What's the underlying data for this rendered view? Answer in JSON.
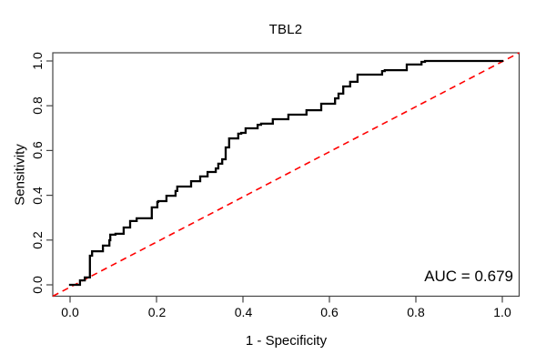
{
  "title": "TBL2",
  "axes": {
    "x": {
      "label": "1 - Specificity",
      "ticks": [
        "0.0",
        "0.2",
        "0.4",
        "0.6",
        "0.8",
        "1.0"
      ],
      "tick_values": [
        0,
        0.2,
        0.4,
        0.6,
        0.8,
        1.0
      ]
    },
    "y": {
      "label": "Sensitivity",
      "ticks": [
        "0.0",
        "0.2",
        "0.4",
        "0.6",
        "0.8",
        "1.0"
      ],
      "tick_values": [
        0,
        0.2,
        0.4,
        0.6,
        0.8,
        1.0
      ]
    }
  },
  "annotation": {
    "auc_label": "AUC = 0.679",
    "auc_value": 0.679
  },
  "colors": {
    "roc_curve": "#000000",
    "diagonal": "#ff0000",
    "box": "#444444",
    "text": "#000000",
    "background": "#ffffff"
  },
  "chart_data": {
    "type": "line",
    "title": "TBL2",
    "xlabel": "1 - Specificity",
    "ylabel": "Sensitivity",
    "xlim": [
      0,
      1
    ],
    "ylim": [
      0,
      1
    ],
    "grid": false,
    "legend": "none",
    "series": [
      {
        "name": "ROC step curve",
        "style": "solid-step",
        "color": "#000000",
        "points": [
          [
            0.0,
            0.0
          ],
          [
            0.023,
            0.0
          ],
          [
            0.023,
            0.02
          ],
          [
            0.034,
            0.02
          ],
          [
            0.034,
            0.033
          ],
          [
            0.046,
            0.033
          ],
          [
            0.051,
            0.13
          ],
          [
            0.065,
            0.15
          ],
          [
            0.076,
            0.15
          ],
          [
            0.078,
            0.175
          ],
          [
            0.091,
            0.175
          ],
          [
            0.093,
            0.199
          ],
          [
            0.105,
            0.224
          ],
          [
            0.124,
            0.228
          ],
          [
            0.139,
            0.256
          ],
          [
            0.154,
            0.285
          ],
          [
            0.175,
            0.297
          ],
          [
            0.189,
            0.297
          ],
          [
            0.189,
            0.346
          ],
          [
            0.202,
            0.346
          ],
          [
            0.204,
            0.37
          ],
          [
            0.223,
            0.374
          ],
          [
            0.223,
            0.39
          ],
          [
            0.244,
            0.398
          ],
          [
            0.248,
            0.419
          ],
          [
            0.253,
            0.439
          ],
          [
            0.28,
            0.439
          ],
          [
            0.28,
            0.459
          ],
          [
            0.301,
            0.463
          ],
          [
            0.301,
            0.48
          ],
          [
            0.318,
            0.484
          ],
          [
            0.318,
            0.5
          ],
          [
            0.337,
            0.504
          ],
          [
            0.343,
            0.52
          ],
          [
            0.352,
            0.541
          ],
          [
            0.36,
            0.561
          ],
          [
            0.368,
            0.614
          ],
          [
            0.371,
            0.654
          ],
          [
            0.389,
            0.654
          ],
          [
            0.396,
            0.675
          ],
          [
            0.406,
            0.679
          ],
          [
            0.406,
            0.695
          ],
          [
            0.434,
            0.699
          ],
          [
            0.442,
            0.715
          ],
          [
            0.469,
            0.72
          ],
          [
            0.476,
            0.74
          ],
          [
            0.505,
            0.74
          ],
          [
            0.516,
            0.76
          ],
          [
            0.547,
            0.76
          ],
          [
            0.547,
            0.78
          ],
          [
            0.581,
            0.78
          ],
          [
            0.589,
            0.809
          ],
          [
            0.613,
            0.809
          ],
          [
            0.621,
            0.833
          ],
          [
            0.632,
            0.854
          ],
          [
            0.632,
            0.87
          ],
          [
            0.648,
            0.886
          ],
          [
            0.665,
            0.907
          ],
          [
            0.674,
            0.939
          ],
          [
            0.722,
            0.939
          ],
          [
            0.728,
            0.955
          ],
          [
            0.779,
            0.959
          ],
          [
            0.785,
            0.984
          ],
          [
            0.813,
            0.984
          ],
          [
            0.821,
            0.996
          ],
          [
            1.0,
            1.0
          ]
        ]
      },
      {
        "name": "chance diagonal",
        "style": "dashed",
        "color": "#ff0000",
        "points": [
          [
            0,
            0
          ],
          [
            1,
            1
          ]
        ]
      }
    ],
    "annotations": [
      {
        "text": "AUC = 0.679",
        "x": 0.9,
        "y": 0.04
      }
    ]
  }
}
